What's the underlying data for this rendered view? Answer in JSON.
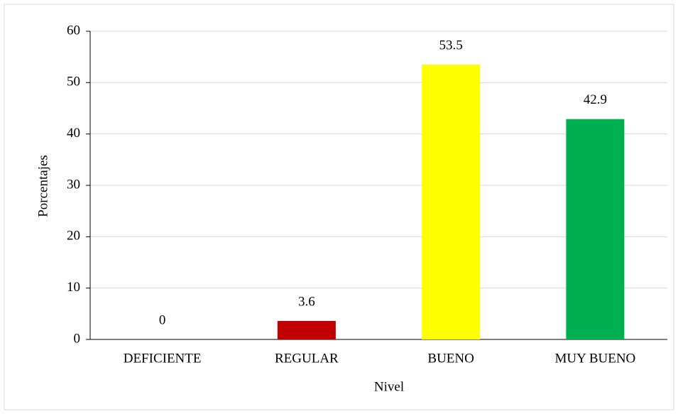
{
  "chart_data": {
    "type": "bar",
    "categories": [
      "DEFICIENTE",
      "REGULAR",
      "BUENO",
      "MUY BUENO"
    ],
    "values": [
      0,
      3.6,
      53.5,
      42.9
    ],
    "colors": [
      "#4472c4",
      "#c00000",
      "#ffff00",
      "#00b050"
    ],
    "x_label": "Nivel",
    "y_label": "Porcentajes",
    "ylim": [
      0,
      60
    ],
    "yticks": [
      0,
      10,
      20,
      30,
      40,
      50,
      60
    ],
    "grid": true
  }
}
